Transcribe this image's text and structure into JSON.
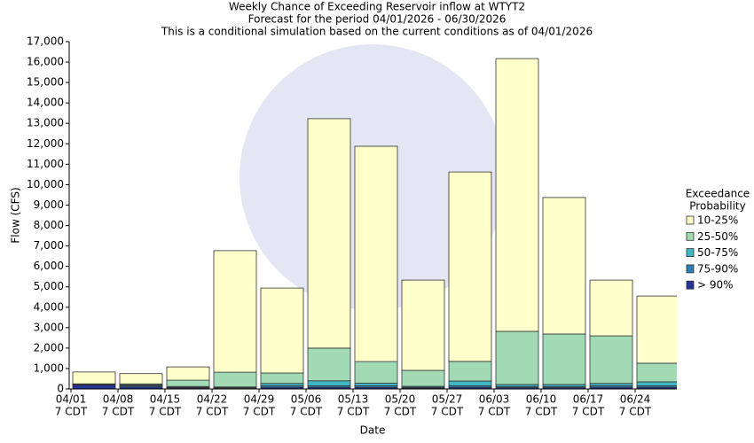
{
  "chart_data": {
    "type": "stacked-bar",
    "title": "Weekly Chance of Exceeding Reservoir inflow at WTYT2",
    "subtitle": "Forecast for the period 04/01/2026 - 06/30/2026",
    "annotation": "This is a conditional simulation based on the current conditions as of 04/01/2026",
    "xlabel": "Date",
    "ylabel": "Flow (CFS)",
    "legend_title": [
      "Exceedance",
      "Probability"
    ],
    "legend_position": "right",
    "categories": [
      [
        "04/01",
        "7 CDT"
      ],
      [
        "04/08",
        "7 CDT"
      ],
      [
        "04/15",
        "7 CDT"
      ],
      [
        "04/22",
        "7 CDT"
      ],
      [
        "04/29",
        "7 CDT"
      ],
      [
        "05/06",
        "7 CDT"
      ],
      [
        "05/13",
        "7 CDT"
      ],
      [
        "05/20",
        "7 CDT"
      ],
      [
        "05/27",
        "7 CDT"
      ],
      [
        "06/03",
        "7 CDT"
      ],
      [
        "06/10",
        "7 CDT"
      ],
      [
        "06/17",
        "7 CDT"
      ],
      [
        "06/24",
        "7 CDT"
      ]
    ],
    "series": [
      {
        "name": "> 90%",
        "color": "#253494",
        "values": [
          200,
          100,
          50,
          30,
          80,
          80,
          80,
          50,
          80,
          60,
          60,
          80,
          80
        ]
      },
      {
        "name": "75-90%",
        "color": "#2c7fb8",
        "values": [
          20,
          50,
          30,
          30,
          70,
          70,
          70,
          30,
          70,
          60,
          60,
          70,
          70
        ]
      },
      {
        "name": "50-75%",
        "color": "#41b6c4",
        "values": [
          10,
          50,
          40,
          40,
          120,
          250,
          130,
          50,
          240,
          100,
          100,
          120,
          200
        ]
      },
      {
        "name": "25-50%",
        "color": "#a1dab4",
        "values": [
          20,
          50,
          310,
          720,
          510,
          1600,
          1060,
          780,
          960,
          2600,
          2470,
          2330,
          910
        ]
      },
      {
        "name": "10-25%",
        "color": "#ffffcc",
        "values": [
          580,
          500,
          650,
          5950,
          4160,
          11230,
          10540,
          4420,
          9270,
          13350,
          6680,
          2730,
          3290
        ]
      }
    ],
    "ylim": [
      0,
      17000
    ],
    "yticks": [
      0,
      {
        "value": 1000,
        "label": "1,000"
      },
      {
        "value": 2000,
        "label": "2,000"
      },
      {
        "value": 3000,
        "label": "3,000"
      },
      {
        "value": 4000,
        "label": "4,000"
      },
      {
        "value": 5000,
        "label": "5,000"
      },
      {
        "value": 6000,
        "label": "6,000"
      },
      {
        "value": 7000,
        "label": "7,000"
      },
      {
        "value": 8000,
        "label": "8,000"
      },
      {
        "value": 9000,
        "label": "9,000"
      },
      {
        "value": 10000,
        "label": "10,000"
      },
      {
        "value": 11000,
        "label": "11,000"
      },
      {
        "value": 12000,
        "label": "12,000"
      },
      {
        "value": 13000,
        "label": "13,000"
      },
      {
        "value": 14000,
        "label": "14,000"
      },
      {
        "value": 15000,
        "label": "15,000"
      },
      {
        "value": 16000,
        "label": "16,000"
      },
      {
        "value": 17000,
        "label": "17,000"
      }
    ],
    "grid": false
  }
}
